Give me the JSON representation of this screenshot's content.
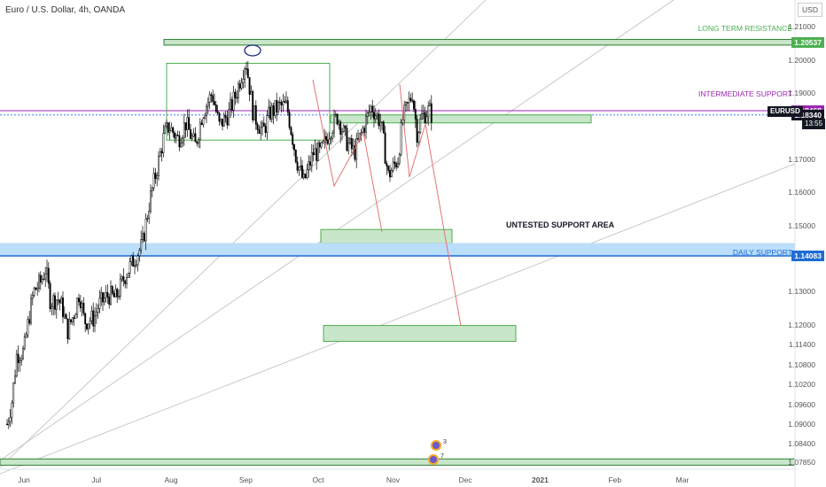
{
  "header": {
    "symbol_title": "Euro / U.S. Dollar, 4h, OANDA",
    "currency_button": "USD"
  },
  "colors": {
    "up_candle": "#000000",
    "down_candle": "#000000",
    "resistance_green": "#4caf50",
    "zone_fill_green": "#c8e6c9",
    "intermediate_purple": "#9c27b0",
    "daily_support_blue": "#1e6bd6",
    "daily_support_fill": "#bbdefb",
    "projection_red": "#e57373",
    "trend_gray": "#bdbdbd"
  },
  "price_axis": {
    "labels": [
      "1.21000",
      "1.20537",
      "1.20000",
      "1.19000",
      "1.18468",
      "1.18340",
      "1.17000",
      "1.16000",
      "1.15000",
      "1.14083",
      "1.13000",
      "1.12000",
      "1.11400",
      "1.10800",
      "1.10200",
      "1.09600",
      "1.09000",
      "1.08400",
      "1.07850"
    ],
    "tags": [
      {
        "label": "1.20537",
        "price": 1.20537,
        "color": "#4caf50"
      },
      {
        "label": "1.18468",
        "price": 1.18468,
        "color": "#9c27b0"
      },
      {
        "label": "1.18340",
        "price": 1.1834,
        "color": "#131722"
      },
      {
        "label": "1.14083",
        "price": 1.14083,
        "color": "#1e6bd6"
      }
    ],
    "ticker": "EURUSD",
    "countdown": "13:55"
  },
  "time_axis": {
    "labels": [
      "Jun",
      "Jul",
      "Aug",
      "Sep",
      "Oct",
      "Nov",
      "Dec",
      "2021",
      "Feb",
      "Mar"
    ]
  },
  "annotations": {
    "long_term_resistance": "LONG TERM RESISTANCE",
    "intermediate_support": "INTERMEDIATE SUPPORT",
    "untested_support_area": "UNTESTED SUPPORT AREA",
    "daily_support": "DAILY SUPPORT"
  },
  "events": [
    {
      "count": "3"
    },
    {
      "count": "7"
    }
  ],
  "chart_data": {
    "type": "candlestick",
    "title": "Euro / U.S. Dollar, 4h, OANDA",
    "ylim": [
      1.0785,
      1.2125
    ],
    "grid": false,
    "price_levels": [
      {
        "name": "LONG TERM RESISTANCE",
        "price": 1.20537
      },
      {
        "name": "INTERMEDIATE SUPPORT",
        "price": 1.18468
      },
      {
        "name": "DAILY SUPPORT",
        "price": 1.14083
      },
      {
        "name": "last price",
        "price": 1.1834
      }
    ],
    "close_path": [
      [
        "2020-05-25",
        1.09
      ],
      [
        "2020-05-27",
        1.097
      ],
      [
        "2020-05-29",
        1.111
      ],
      [
        "2020-06-01",
        1.112
      ],
      [
        "2020-06-03",
        1.122
      ],
      [
        "2020-06-05",
        1.13
      ],
      [
        "2020-06-08",
        1.133
      ],
      [
        "2020-06-10",
        1.137
      ],
      [
        "2020-06-12",
        1.127
      ],
      [
        "2020-06-15",
        1.128
      ],
      [
        "2020-06-17",
        1.125
      ],
      [
        "2020-06-19",
        1.118
      ],
      [
        "2020-06-22",
        1.124
      ],
      [
        "2020-06-24",
        1.13
      ],
      [
        "2020-06-26",
        1.121
      ],
      [
        "2020-06-30",
        1.122
      ],
      [
        "2020-07-02",
        1.126
      ],
      [
        "2020-07-06",
        1.129
      ],
      [
        "2020-07-09",
        1.128
      ],
      [
        "2020-07-13",
        1.135
      ],
      [
        "2020-07-16",
        1.139
      ],
      [
        "2020-07-20",
        1.144
      ],
      [
        "2020-07-23",
        1.157
      ],
      [
        "2020-07-27",
        1.17
      ],
      [
        "2020-07-29",
        1.177
      ],
      [
        "2020-07-31",
        1.18
      ],
      [
        "2020-08-04",
        1.176
      ],
      [
        "2020-08-07",
        1.181
      ],
      [
        "2020-08-11",
        1.174
      ],
      [
        "2020-08-14",
        1.184
      ],
      [
        "2020-08-18",
        1.19
      ],
      [
        "2020-08-21",
        1.18
      ],
      [
        "2020-08-25",
        1.184
      ],
      [
        "2020-08-28",
        1.19
      ],
      [
        "2020-09-01",
        1.2
      ],
      [
        "2020-09-04",
        1.184
      ],
      [
        "2020-09-08",
        1.178
      ],
      [
        "2020-09-11",
        1.184
      ],
      [
        "2020-09-15",
        1.186
      ],
      [
        "2020-09-18",
        1.186
      ],
      [
        "2020-09-22",
        1.17
      ],
      [
        "2020-09-25",
        1.163
      ],
      [
        "2020-09-29",
        1.172
      ],
      [
        "2020-10-02",
        1.172
      ],
      [
        "2020-10-06",
        1.179
      ],
      [
        "2020-10-09",
        1.183
      ],
      [
        "2020-10-13",
        1.175
      ],
      [
        "2020-10-16",
        1.172
      ],
      [
        "2020-10-20",
        1.18
      ],
      [
        "2020-10-23",
        1.186
      ],
      [
        "2020-10-27",
        1.181
      ],
      [
        "2020-10-30",
        1.165
      ],
      [
        "2020-11-03",
        1.17
      ],
      [
        "2020-11-05",
        1.182
      ],
      [
        "2020-11-09",
        1.19
      ],
      [
        "2020-11-11",
        1.178
      ],
      [
        "2020-11-13",
        1.183
      ],
      [
        "2020-11-16",
        1.185
      ],
      [
        "2020-11-17",
        1.1834
      ]
    ]
  }
}
